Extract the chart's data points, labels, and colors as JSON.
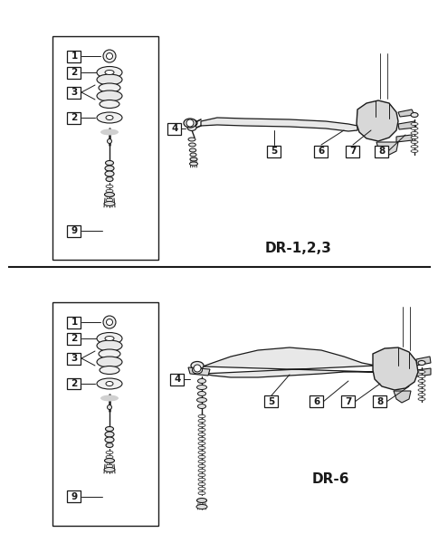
{
  "bg_color": "#ffffff",
  "line_color": "#1a1a1a",
  "box_border": "#1a1a1a",
  "fig_width": 4.85,
  "fig_height": 5.89,
  "dpi": 100,
  "title_top": "DR-1,2,3",
  "title_bottom": "DR-6",
  "title_fontsize": 11,
  "label_fontsize": 7.5
}
